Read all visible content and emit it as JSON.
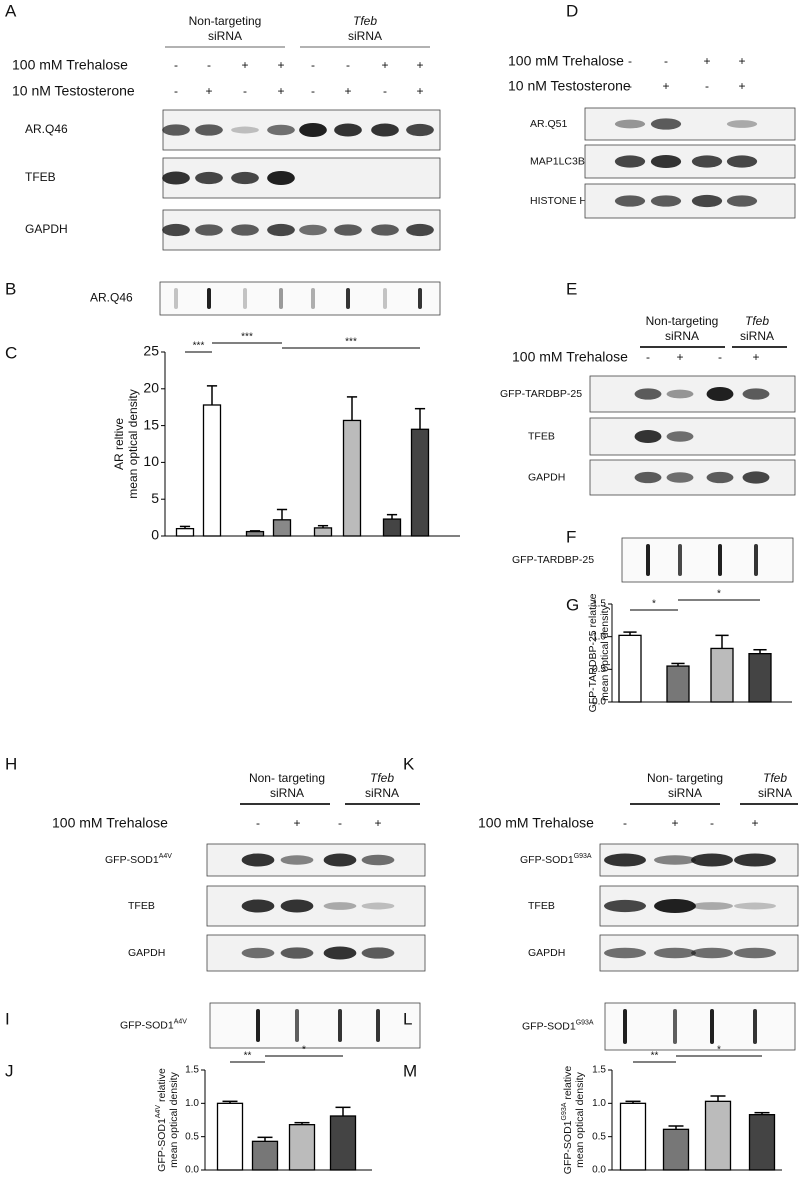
{
  "blots": [
    {
      "letter": "A",
      "groups": [
        [
          "Non-targeting",
          "siRNA"
        ],
        [
          "Tfeb",
          "siRNA"
        ]
      ],
      "conditions": [
        {
          "label": "100 mM Trehalose",
          "signs": [
            "-",
            "-",
            "+",
            "+",
            "-",
            "-",
            "+",
            "+"
          ]
        },
        {
          "label": "10 nM Testosterone",
          "signs": [
            "-",
            "+",
            "-",
            "+",
            "-",
            "+",
            "-",
            "+"
          ]
        }
      ],
      "rows": [
        "AR.Q46",
        "TFEB",
        "GAPDH"
      ]
    },
    {
      "letter": "B",
      "rows": [
        "AR.Q46"
      ]
    },
    {
      "letter": "D",
      "conditions": [
        {
          "label": "100 mM Trehalose",
          "signs": [
            "-",
            "-",
            "+",
            "+"
          ]
        },
        {
          "label": "10 nM Testosterone",
          "signs": [
            "-",
            "+",
            "-",
            "+"
          ]
        }
      ],
      "rows": [
        "AR.Q51",
        "MAP1LC3B",
        "HISTONE H3"
      ]
    },
    {
      "letter": "E",
      "groups": [
        [
          "Non-targeting",
          "siRNA"
        ],
        [
          "Tfeb",
          "siRNA"
        ]
      ],
      "conditions": [
        {
          "label": "100 mM Trehalose",
          "signs": [
            "-",
            "+",
            "-",
            "+"
          ]
        }
      ],
      "rows": [
        "GFP-TARDBP-25",
        "TFEB",
        "GAPDH"
      ]
    },
    {
      "letter": "F",
      "rows": [
        "GFP-TARDBP-25"
      ]
    },
    {
      "letter": "H",
      "groups": [
        [
          "Non- targeting",
          "siRNA"
        ],
        [
          "Tfeb",
          "siRNA"
        ]
      ],
      "conditions": [
        {
          "label": "100 mM Trehalose",
          "signs": [
            "-",
            "+",
            "-",
            "+"
          ]
        }
      ],
      "rows": [
        {
          "text": "GFP-SOD1",
          "sup": "A4V"
        },
        "TFEB",
        "GAPDH"
      ]
    },
    {
      "letter": "I",
      "rows": [
        {
          "text": "GFP-SOD1",
          "sup": "A4V"
        }
      ]
    },
    {
      "letter": "K",
      "groups": [
        [
          "Non- targeting",
          "siRNA"
        ],
        [
          "Tfeb",
          "siRNA"
        ]
      ],
      "conditions": [
        {
          "label": "100 mM Trehalose",
          "signs": [
            "-",
            "+",
            "-",
            "+"
          ]
        }
      ],
      "rows": [
        {
          "text": "GFP-SOD1",
          "sup": "G93A"
        },
        "TFEB",
        "GAPDH"
      ]
    },
    {
      "letter": "L",
      "rows": [
        {
          "text": "GFP-SOD1",
          "sup": "G93A"
        }
      ]
    }
  ],
  "chart_data": [
    {
      "type": "bar",
      "letter": "C",
      "ylabel": [
        "AR reltive",
        "mean optical density"
      ],
      "ylim": [
        0,
        25
      ],
      "yticks": [
        0,
        5,
        10,
        15,
        20,
        25
      ],
      "values": [
        1.0,
        17.8,
        0.6,
        2.2,
        1.1,
        15.7,
        2.3,
        14.5
      ],
      "errors": [
        0.3,
        2.6,
        0.1,
        1.4,
        0.3,
        3.2,
        0.6,
        2.8
      ],
      "colors": [
        "#ffffff",
        "#ffffff",
        "#888888",
        "#888888",
        "#bbbbbb",
        "#bbbbbb",
        "#444444",
        "#444444"
      ],
      "annotations": [
        "***",
        "***",
        "***"
      ]
    },
    {
      "type": "bar",
      "letter": "G",
      "ylabel": [
        "GFP-TARDBP-25 relative",
        "mean optical density"
      ],
      "ylim": [
        0,
        1.5
      ],
      "yticks": [
        {
          "value": 0,
          "label": "0.0"
        },
        {
          "value": 0.5,
          "label": "0.5"
        },
        {
          "value": 1,
          "label": "1.0"
        },
        {
          "value": 1.5,
          "label": "1.5"
        }
      ],
      "values": [
        1.02,
        0.55,
        0.82,
        0.74
      ],
      "errors": [
        0.05,
        0.04,
        0.2,
        0.06
      ],
      "colors": [
        "#ffffff",
        "#777777",
        "#bbbbbb",
        "#444444"
      ],
      "annotations": [
        "*",
        "*"
      ]
    },
    {
      "type": "bar",
      "letter": "J",
      "ylabel": [
        {
          "text": "GFP-SOD1",
          "sup": "A4V",
          "after": " relative"
        },
        "mean optical density"
      ],
      "ylim": [
        0,
        1.5
      ],
      "yticks": [
        {
          "value": 0,
          "label": "0.0"
        },
        {
          "value": 0.5,
          "label": "0.5"
        },
        {
          "value": 1,
          "label": "1.0"
        },
        {
          "value": 1.5,
          "label": "1.5"
        }
      ],
      "values": [
        1.0,
        0.43,
        0.68,
        0.81
      ],
      "errors": [
        0.03,
        0.06,
        0.03,
        0.13
      ],
      "colors": [
        "#ffffff",
        "#777777",
        "#bbbbbb",
        "#444444"
      ],
      "annotations": [
        "**",
        "*"
      ]
    },
    {
      "type": "bar",
      "letter": "M",
      "ylabel": [
        {
          "text": "GFP-SOD1",
          "sup": "G93A",
          "after": " relative"
        },
        "mean optical density"
      ],
      "ylim": [
        0,
        1.5
      ],
      "yticks": [
        {
          "value": 0,
          "label": "0.0"
        },
        {
          "value": 0.5,
          "label": "0.5"
        },
        {
          "value": 1,
          "label": "1.0"
        },
        {
          "value": 1.5,
          "label": "1.5"
        }
      ],
      "values": [
        1.0,
        0.61,
        1.03,
        0.83
      ],
      "errors": [
        0.03,
        0.05,
        0.08,
        0.03
      ],
      "colors": [
        "#ffffff",
        "#777777",
        "#bbbbbb",
        "#444444"
      ],
      "annotations": [
        "**",
        "*"
      ]
    }
  ]
}
